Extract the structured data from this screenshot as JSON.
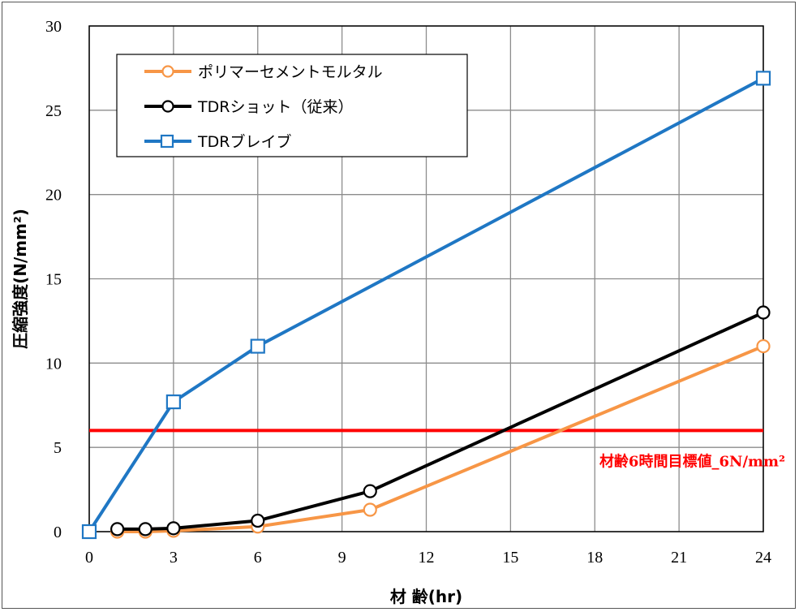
{
  "chart_data": {
    "type": "line",
    "xlabel": "材 齢(hr)",
    "ylabel": "圧縮強度(N/mm²)",
    "xlim": [
      0,
      24
    ],
    "ylim": [
      0,
      30
    ],
    "xticks": [
      0,
      3,
      6,
      9,
      12,
      15,
      18,
      21,
      24
    ],
    "yticks": [
      0,
      5,
      10,
      15,
      20,
      25,
      30
    ],
    "grid": true,
    "legend_position": "top-left",
    "series": [
      {
        "name": "ポリマーセメントモルタル",
        "color": "#f79646",
        "marker": "circle",
        "points": [
          [
            1,
            0.0
          ],
          [
            2,
            0.0
          ],
          [
            3,
            0.05
          ],
          [
            6,
            0.3
          ],
          [
            10,
            1.3
          ],
          [
            24,
            11.0
          ]
        ]
      },
      {
        "name": "TDRショット（従来）",
        "color": "#000000",
        "marker": "circle",
        "points": [
          [
            1,
            0.15
          ],
          [
            2,
            0.15
          ],
          [
            3,
            0.2
          ],
          [
            6,
            0.65
          ],
          [
            10,
            2.4
          ],
          [
            24,
            13.0
          ]
        ]
      },
      {
        "name": "TDRブレイブ",
        "color": "#1f77c4",
        "marker": "square",
        "points": [
          [
            0,
            0.0
          ],
          [
            3,
            7.7
          ],
          [
            6,
            11.0
          ],
          [
            24,
            26.9
          ]
        ]
      }
    ],
    "reference_line": {
      "y": 6,
      "color": "#ff0000",
      "label": "材齢6時間目標値_6N/mm²"
    }
  }
}
